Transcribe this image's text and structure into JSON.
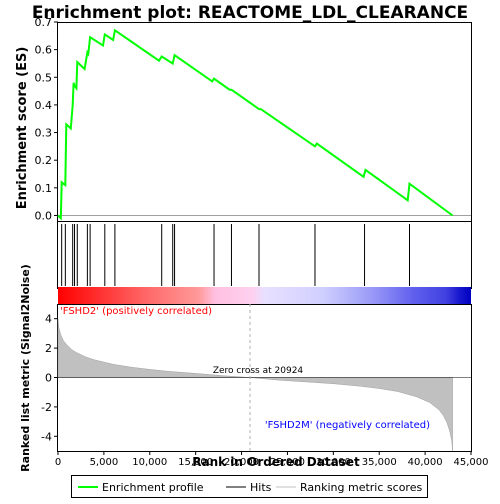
{
  "chart_data": {
    "type": "line",
    "title": "Enrichment plot: REACTOME_LDL_CLEARANCE",
    "top_panel": {
      "ylabel": "Enrichment score (ES)",
      "ylim": [
        -0.02,
        0.7
      ],
      "yticks": [
        "0.0",
        "0.1",
        "0.2",
        "0.3",
        "0.4",
        "0.5",
        "0.6",
        "0.7"
      ],
      "ytick_values": [
        0.0,
        0.1,
        0.2,
        0.3,
        0.4,
        0.5,
        0.6,
        0.7
      ],
      "series": [
        {
          "name": "Enrichment profile",
          "color": "#00ff00",
          "x": [
            0,
            300,
            400,
            800,
            900,
            1400,
            1600,
            1700,
            1800,
            2000,
            2100,
            2900,
            3200,
            3300,
            3500,
            4900,
            5100,
            6000,
            6200,
            11000,
            11300,
            12500,
            12700,
            16800,
            17000,
            18700,
            18900,
            21900,
            22100,
            28000,
            28200,
            33300,
            33500,
            38100,
            38300,
            43000
          ],
          "y": [
            0.0,
            -0.01,
            0.12,
            0.11,
            0.33,
            0.315,
            0.4,
            0.48,
            0.47,
            0.46,
            0.555,
            0.53,
            0.59,
            0.585,
            0.645,
            0.615,
            0.655,
            0.635,
            0.67,
            0.56,
            0.575,
            0.55,
            0.58,
            0.485,
            0.495,
            0.455,
            0.455,
            0.385,
            0.385,
            0.25,
            0.26,
            0.14,
            0.165,
            0.055,
            0.115,
            0.0
          ]
        }
      ]
    },
    "hits": [
      400,
      800,
      1600,
      1800,
      2100,
      3200,
      3500,
      5100,
      6200,
      11300,
      12500,
      12700,
      17000,
      18900,
      21900,
      28000,
      33400,
      38300
    ],
    "bottom_panel": {
      "ylabel": "Ranked list metric (Signal2Noise)",
      "xlabel": "Rank in Ordered Dataset",
      "ylim": [
        -5,
        5
      ],
      "yticks": [
        "-4",
        "-2",
        "0",
        "2",
        "4"
      ],
      "ytick_values": [
        -4,
        -2,
        0,
        2,
        4
      ],
      "zero_cross_label": "Zero cross at 20924",
      "zero_cross": 20924,
      "positive_label": "'FSHD2' (positively correlated)",
      "negative_label": "'FSHD2M' (negatively correlated)",
      "metric_x": [
        0,
        100,
        300,
        600,
        1000,
        1500,
        2000,
        3000,
        4000,
        6000,
        8000,
        10000,
        12000,
        15000,
        18000,
        20924,
        24000,
        27000,
        30000,
        33000,
        35000,
        37000,
        39000,
        40500,
        41500,
        42000,
        42400,
        42700,
        42900,
        43000
      ],
      "metric_y": [
        4.0,
        3.4,
        2.9,
        2.5,
        2.2,
        1.9,
        1.7,
        1.4,
        1.2,
        0.9,
        0.7,
        0.55,
        0.42,
        0.28,
        0.12,
        0.0,
        -0.18,
        -0.3,
        -0.42,
        -0.6,
        -0.75,
        -0.95,
        -1.3,
        -1.7,
        -2.2,
        -2.6,
        -3.1,
        -3.7,
        -4.3,
        -5.0
      ]
    },
    "xlim": [
      0,
      45000
    ],
    "xticks": [
      "0",
      "5,000",
      "10,000",
      "15,000",
      "20,000",
      "25,000",
      "30,000",
      "35,000",
      "40,000",
      "45,000"
    ],
    "xtick_values": [
      0,
      5000,
      10000,
      15000,
      20000,
      25000,
      30000,
      35000,
      40000,
      45000
    ],
    "n_genes": 43000,
    "legend": {
      "placement": "bottom",
      "entries": [
        {
          "label": "Enrichment profile",
          "color": "#00ff00"
        },
        {
          "label": "Hits",
          "color": "#000000"
        },
        {
          "label": "Ranking metric scores",
          "color": "#c0c0c0"
        }
      ]
    },
    "colors": {
      "profile": "#00ff00",
      "positive_text": "#ff0000",
      "negative_text": "#0000ff",
      "metric_fill": "#c0c0c0"
    }
  }
}
